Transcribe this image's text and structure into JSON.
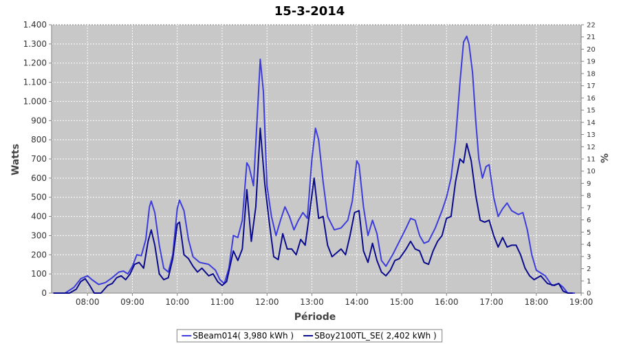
{
  "chart_data": {
    "type": "line",
    "title": "15-3-2014",
    "xlabel": "Période",
    "ylabel": "Watts",
    "y2label": "%",
    "xlim": [
      7.2,
      19.0
    ],
    "ylim": [
      0,
      1400
    ],
    "y2lim": [
      0,
      22
    ],
    "x_ticks": [
      8,
      9,
      10,
      11,
      12,
      13,
      14,
      15,
      16,
      17,
      18,
      19
    ],
    "x_tick_labels": [
      "08:00",
      "09:00",
      "10:00",
      "11:00",
      "12:00",
      "13:00",
      "14:00",
      "15:00",
      "16:00",
      "17:00",
      "18:00",
      "19:00"
    ],
    "y_ticks": [
      0,
      100,
      200,
      300,
      400,
      500,
      600,
      700,
      800,
      900,
      1000,
      1100,
      1200,
      1300,
      1400
    ],
    "y_tick_labels": [
      "0",
      "100",
      "200",
      "300",
      "400",
      "500",
      "600",
      "700",
      "800",
      "900",
      "1.000",
      "1.100",
      "1.200",
      "1.300",
      "1.400"
    ],
    "y2_ticks": [
      0,
      1,
      2,
      3,
      4,
      5,
      6,
      7,
      8,
      9,
      10,
      11,
      12,
      13,
      14,
      15,
      16,
      17,
      18,
      19,
      20,
      21,
      22
    ],
    "grid": true,
    "legend_position": "bottom",
    "background_color": "#c8c8c8",
    "series": [
      {
        "name": "SBeam014( 3,980 kWh )",
        "color": "#3c3cdc",
        "points": [
          [
            7.25,
            0
          ],
          [
            7.5,
            0
          ],
          [
            7.7,
            30
          ],
          [
            7.85,
            75
          ],
          [
            8.0,
            90
          ],
          [
            8.1,
            70
          ],
          [
            8.25,
            45
          ],
          [
            8.4,
            55
          ],
          [
            8.55,
            80
          ],
          [
            8.7,
            110
          ],
          [
            8.8,
            115
          ],
          [
            8.9,
            100
          ],
          [
            9.0,
            140
          ],
          [
            9.1,
            200
          ],
          [
            9.2,
            195
          ],
          [
            9.3,
            280
          ],
          [
            9.38,
            450
          ],
          [
            9.42,
            480
          ],
          [
            9.5,
            420
          ],
          [
            9.6,
            250
          ],
          [
            9.7,
            130
          ],
          [
            9.8,
            110
          ],
          [
            9.9,
            200
          ],
          [
            10.0,
            440
          ],
          [
            10.05,
            485
          ],
          [
            10.15,
            430
          ],
          [
            10.25,
            280
          ],
          [
            10.35,
            190
          ],
          [
            10.5,
            160
          ],
          [
            10.7,
            150
          ],
          [
            10.85,
            120
          ],
          [
            10.95,
            70
          ],
          [
            11.05,
            50
          ],
          [
            11.15,
            130
          ],
          [
            11.25,
            300
          ],
          [
            11.35,
            290
          ],
          [
            11.45,
            380
          ],
          [
            11.55,
            680
          ],
          [
            11.6,
            660
          ],
          [
            11.7,
            560
          ],
          [
            11.8,
            1000
          ],
          [
            11.85,
            1220
          ],
          [
            11.92,
            1050
          ],
          [
            12.0,
            560
          ],
          [
            12.1,
            400
          ],
          [
            12.2,
            300
          ],
          [
            12.3,
            380
          ],
          [
            12.4,
            450
          ],
          [
            12.5,
            400
          ],
          [
            12.6,
            330
          ],
          [
            12.7,
            380
          ],
          [
            12.8,
            420
          ],
          [
            12.9,
            390
          ],
          [
            13.0,
            700
          ],
          [
            13.08,
            860
          ],
          [
            13.15,
            800
          ],
          [
            13.25,
            580
          ],
          [
            13.35,
            400
          ],
          [
            13.5,
            330
          ],
          [
            13.65,
            340
          ],
          [
            13.8,
            380
          ],
          [
            13.9,
            480
          ],
          [
            14.0,
            690
          ],
          [
            14.05,
            670
          ],
          [
            14.15,
            450
          ],
          [
            14.25,
            300
          ],
          [
            14.35,
            380
          ],
          [
            14.45,
            310
          ],
          [
            14.55,
            170
          ],
          [
            14.65,
            140
          ],
          [
            14.8,
            200
          ],
          [
            14.95,
            270
          ],
          [
            15.1,
            340
          ],
          [
            15.2,
            390
          ],
          [
            15.3,
            380
          ],
          [
            15.4,
            300
          ],
          [
            15.5,
            260
          ],
          [
            15.6,
            270
          ],
          [
            15.75,
            340
          ],
          [
            15.9,
            430
          ],
          [
            16.0,
            500
          ],
          [
            16.1,
            600
          ],
          [
            16.2,
            800
          ],
          [
            16.3,
            1100
          ],
          [
            16.38,
            1310
          ],
          [
            16.45,
            1340
          ],
          [
            16.5,
            1300
          ],
          [
            16.58,
            1150
          ],
          [
            16.65,
            900
          ],
          [
            16.72,
            700
          ],
          [
            16.8,
            600
          ],
          [
            16.88,
            660
          ],
          [
            16.95,
            670
          ],
          [
            17.05,
            500
          ],
          [
            17.15,
            400
          ],
          [
            17.25,
            440
          ],
          [
            17.35,
            470
          ],
          [
            17.45,
            430
          ],
          [
            17.6,
            410
          ],
          [
            17.7,
            420
          ],
          [
            17.8,
            330
          ],
          [
            17.9,
            200
          ],
          [
            18.0,
            120
          ],
          [
            18.2,
            90
          ],
          [
            18.35,
            40
          ],
          [
            18.5,
            50
          ],
          [
            18.6,
            30
          ],
          [
            18.7,
            0
          ],
          [
            18.85,
            0
          ]
        ]
      },
      {
        "name": "SBoy2100TL_SE( 2,402 kWh )",
        "color": "#0a0a8c",
        "points": [
          [
            7.25,
            0
          ],
          [
            7.6,
            0
          ],
          [
            7.75,
            20
          ],
          [
            7.85,
            60
          ],
          [
            7.95,
            75
          ],
          [
            8.05,
            40
          ],
          [
            8.15,
            0
          ],
          [
            8.3,
            0
          ],
          [
            8.45,
            40
          ],
          [
            8.55,
            50
          ],
          [
            8.65,
            80
          ],
          [
            8.75,
            90
          ],
          [
            8.85,
            70
          ],
          [
            8.95,
            100
          ],
          [
            9.05,
            150
          ],
          [
            9.15,
            160
          ],
          [
            9.25,
            130
          ],
          [
            9.35,
            270
          ],
          [
            9.42,
            330
          ],
          [
            9.5,
            250
          ],
          [
            9.6,
            100
          ],
          [
            9.7,
            70
          ],
          [
            9.8,
            80
          ],
          [
            9.9,
            180
          ],
          [
            10.0,
            360
          ],
          [
            10.05,
            370
          ],
          [
            10.15,
            200
          ],
          [
            10.25,
            180
          ],
          [
            10.35,
            140
          ],
          [
            10.45,
            110
          ],
          [
            10.55,
            130
          ],
          [
            10.7,
            90
          ],
          [
            10.8,
            100
          ],
          [
            10.9,
            60
          ],
          [
            11.0,
            40
          ],
          [
            11.1,
            60
          ],
          [
            11.25,
            220
          ],
          [
            11.35,
            170
          ],
          [
            11.45,
            230
          ],
          [
            11.55,
            540
          ],
          [
            11.65,
            270
          ],
          [
            11.75,
            450
          ],
          [
            11.85,
            860
          ],
          [
            11.95,
            570
          ],
          [
            12.05,
            370
          ],
          [
            12.15,
            190
          ],
          [
            12.25,
            175
          ],
          [
            12.35,
            310
          ],
          [
            12.45,
            230
          ],
          [
            12.55,
            230
          ],
          [
            12.65,
            200
          ],
          [
            12.75,
            280
          ],
          [
            12.85,
            250
          ],
          [
            12.95,
            420
          ],
          [
            13.05,
            600
          ],
          [
            13.15,
            390
          ],
          [
            13.25,
            400
          ],
          [
            13.35,
            250
          ],
          [
            13.45,
            190
          ],
          [
            13.55,
            210
          ],
          [
            13.65,
            230
          ],
          [
            13.75,
            200
          ],
          [
            13.85,
            300
          ],
          [
            13.95,
            420
          ],
          [
            14.05,
            430
          ],
          [
            14.15,
            220
          ],
          [
            14.25,
            160
          ],
          [
            14.35,
            260
          ],
          [
            14.45,
            170
          ],
          [
            14.55,
            110
          ],
          [
            14.65,
            90
          ],
          [
            14.75,
            120
          ],
          [
            14.85,
            170
          ],
          [
            14.95,
            180
          ],
          [
            15.1,
            230
          ],
          [
            15.2,
            270
          ],
          [
            15.3,
            230
          ],
          [
            15.4,
            220
          ],
          [
            15.5,
            160
          ],
          [
            15.6,
            150
          ],
          [
            15.7,
            220
          ],
          [
            15.8,
            270
          ],
          [
            15.9,
            300
          ],
          [
            16.0,
            390
          ],
          [
            16.1,
            400
          ],
          [
            16.2,
            580
          ],
          [
            16.3,
            700
          ],
          [
            16.38,
            680
          ],
          [
            16.45,
            780
          ],
          [
            16.55,
            690
          ],
          [
            16.65,
            510
          ],
          [
            16.75,
            380
          ],
          [
            16.85,
            370
          ],
          [
            16.95,
            380
          ],
          [
            17.05,
            300
          ],
          [
            17.15,
            240
          ],
          [
            17.25,
            290
          ],
          [
            17.35,
            240
          ],
          [
            17.45,
            250
          ],
          [
            17.55,
            250
          ],
          [
            17.65,
            200
          ],
          [
            17.75,
            130
          ],
          [
            17.85,
            90
          ],
          [
            17.95,
            70
          ],
          [
            18.1,
            90
          ],
          [
            18.25,
            50
          ],
          [
            18.4,
            40
          ],
          [
            18.5,
            50
          ],
          [
            18.6,
            10
          ],
          [
            18.7,
            0
          ],
          [
            18.8,
            0
          ]
        ]
      }
    ]
  }
}
